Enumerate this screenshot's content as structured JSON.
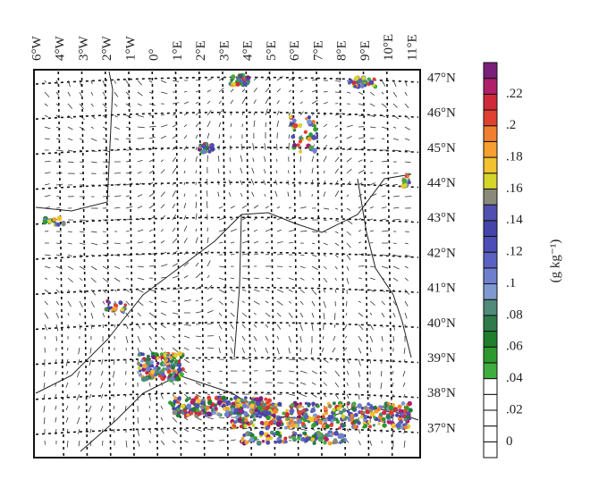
{
  "map": {
    "lon_labels": [
      "6°W",
      "4°W",
      "3°W",
      "2°W",
      "1°W",
      "0°",
      "1°E",
      "2°E",
      "3°E",
      "4°E",
      "5°E",
      "6°E",
      "7°E",
      "8°E",
      "9°E",
      "10°E",
      "11°E"
    ],
    "lat_labels": [
      "47°N",
      "46°N",
      "45°N",
      "44°N",
      "43°N",
      "42°N",
      "41°N",
      "40°N",
      "39°N",
      "38°N",
      "37°N"
    ]
  },
  "colorbar": {
    "labels": [
      "0",
      ".02",
      ".04",
      ".06",
      ".08",
      ".1",
      ".12",
      ".14",
      ".16",
      ".18",
      ".2",
      ".22"
    ],
    "unit": "(g kg⁻¹)",
    "colors": [
      "#ffffff",
      "#ffffff",
      "#ffffff",
      "#ffffff",
      "#ffffff",
      "#3fae3f",
      "#2e9a2e",
      "#1f7f2a",
      "#2f7a4a",
      "#4f8a7a",
      "#7f9ad0",
      "#6f7fd0",
      "#5c62c4",
      "#4d4db8",
      "#4444aa",
      "#5050b0",
      "#8a8a7a",
      "#d6d62a",
      "#f2c230",
      "#f5a030",
      "#f08030",
      "#e04030",
      "#d02a3a",
      "#b0206a",
      "#7a1f7a"
    ]
  }
}
